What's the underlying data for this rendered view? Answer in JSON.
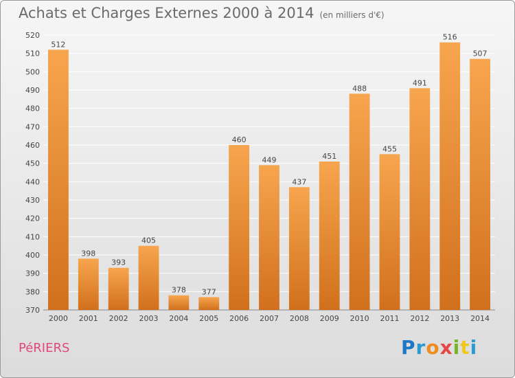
{
  "header": {
    "title": "Achats et Charges Externes 2000 à 2014",
    "unit_note": "(en milliers d'€)"
  },
  "footer": {
    "commune": "PéRIERS",
    "logo_letters": [
      "P",
      "r",
      "o",
      "x",
      "i",
      "t",
      "i"
    ]
  },
  "colors": {
    "bar_top": "#f7a54e",
    "bar_bottom": "#d1701c",
    "grid": "#ffffff",
    "text": "#444444"
  },
  "chart_data": {
    "type": "bar",
    "title": "Achats et Charges Externes 2000 à 2014",
    "subtitle": "(en milliers d'€)",
    "categories": [
      "2000",
      "2001",
      "2002",
      "2003",
      "2004",
      "2005",
      "2006",
      "2007",
      "2008",
      "2009",
      "2010",
      "2011",
      "2012",
      "2013",
      "2014"
    ],
    "values": [
      512,
      398,
      393,
      405,
      378,
      377,
      460,
      449,
      437,
      451,
      488,
      455,
      491,
      516,
      507
    ],
    "ylim": [
      370,
      520
    ],
    "yticks": [
      370,
      380,
      390,
      400,
      410,
      420,
      430,
      440,
      450,
      460,
      470,
      480,
      490,
      500,
      510,
      520
    ],
    "grid": true,
    "xlabel": "",
    "ylabel": ""
  }
}
